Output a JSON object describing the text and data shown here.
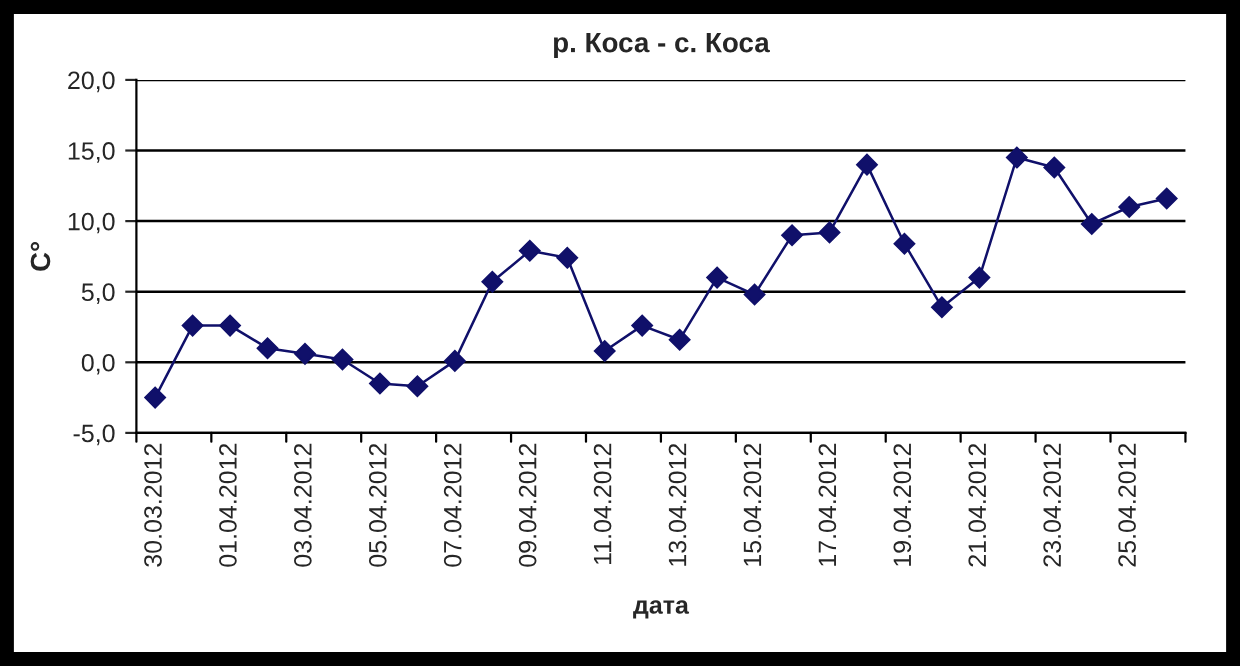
{
  "chart_data": {
    "type": "line",
    "title": "р. Коса - с. Коса",
    "xlabel": "дата",
    "ylabel": "C°",
    "categories": [
      "30.03.2012",
      null,
      "01.04.2012",
      null,
      "03.04.2012",
      null,
      "05.04.2012",
      null,
      "07.04.2012",
      null,
      "09.04.2012",
      null,
      "11.04.2012",
      null,
      "13.04.2012",
      null,
      "15.04.2012",
      null,
      "17.04.2012",
      null,
      "19.04.2012",
      null,
      "21.04.2012",
      null,
      "23.04.2012",
      null,
      "25.04.2012",
      null
    ],
    "series": [
      {
        "color": "#10106a",
        "values": [
          -2.5,
          2.6,
          2.6,
          1.0,
          0.6,
          0.2,
          -1.5,
          -1.7,
          0.1,
          5.7,
          7.9,
          7.4,
          0.8,
          2.6,
          1.6,
          6.0,
          4.8,
          9.0,
          9.2,
          14.0,
          8.4,
          3.9,
          6.0,
          14.5,
          13.8,
          9.8,
          11.0,
          11.6
        ]
      }
    ],
    "ylim": [
      -5,
      20
    ],
    "yticks": [
      {
        "value": -5,
        "label": "-5,0"
      },
      {
        "value": 0,
        "label": "0,0"
      },
      {
        "value": 5,
        "label": "5,0"
      },
      {
        "value": 10,
        "label": "10,0"
      },
      {
        "value": 15,
        "label": "15,0"
      },
      {
        "value": 20,
        "label": "20,0"
      }
    ],
    "grid": "y",
    "marker": "diamond",
    "line_style": "solid",
    "legend": false
  }
}
